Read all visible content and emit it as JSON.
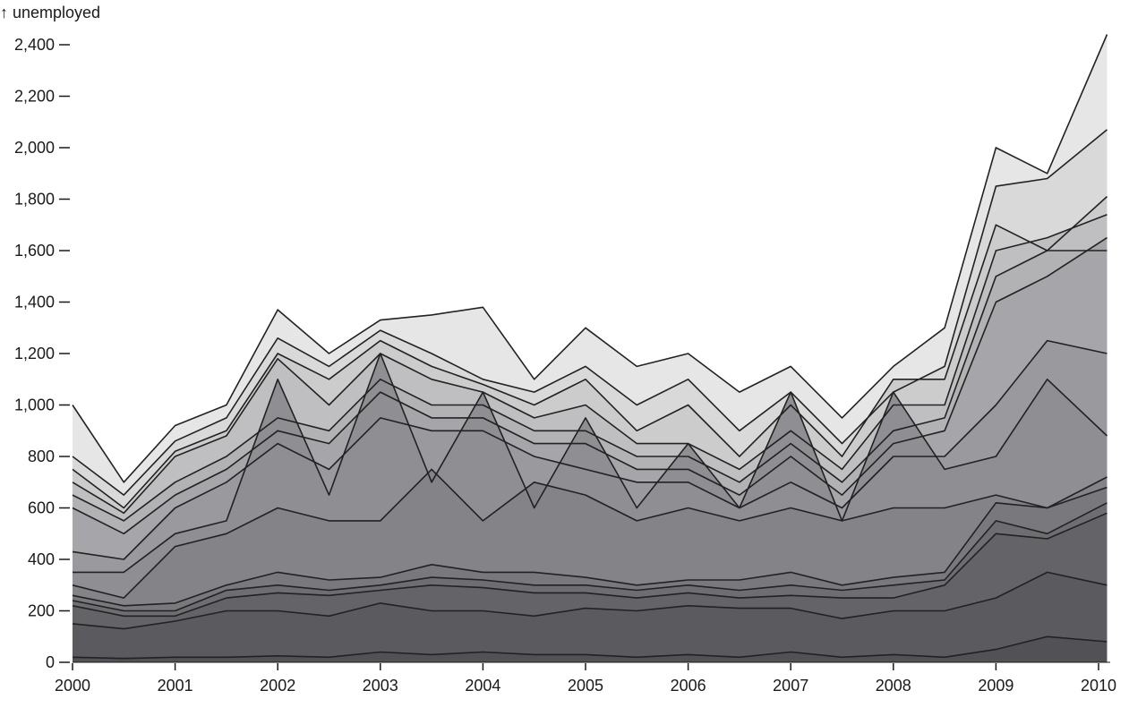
{
  "chart_data": {
    "type": "line",
    "subtype": "overlapping-area",
    "ylabel": "↑ unemployed",
    "ylim": [
      0,
      2450
    ],
    "xlim": [
      "2000-01",
      "2010-02"
    ],
    "y_ticks": [
      0,
      200,
      400,
      600,
      800,
      1000,
      1200,
      1400,
      1600,
      1800,
      2000,
      2200,
      2400
    ],
    "y_tick_labels": [
      "0",
      "200",
      "400",
      "600",
      "800",
      "1,000",
      "1,200",
      "1,400",
      "1,600",
      "1,800",
      "2,000",
      "2,200",
      "2,400"
    ],
    "x_ticks": [
      "2000",
      "2001",
      "2002",
      "2003",
      "2004",
      "2005",
      "2006",
      "2007",
      "2008",
      "2009",
      "2010"
    ],
    "x": [
      "2000-01",
      "2000-07",
      "2001-01",
      "2001-07",
      "2002-01",
      "2002-07",
      "2003-01",
      "2003-07",
      "2004-01",
      "2004-07",
      "2005-01",
      "2005-07",
      "2006-01",
      "2006-07",
      "2007-01",
      "2007-07",
      "2008-01",
      "2008-07",
      "2009-01",
      "2009-07",
      "2010-02"
    ],
    "fill_colors": [
      "#e6e6e6",
      "#d9d9d9",
      "#cccccd",
      "#bfbfc1",
      "#b2b2b5",
      "#a6a6aa",
      "#9a9a9e",
      "#8e8e93",
      "#838388",
      "#78787d",
      "#6d6d72",
      "#636368",
      "#5a5a5f",
      "#525256"
    ],
    "series": [
      {
        "values": [
          1000,
          700,
          920,
          1000,
          1370,
          1200,
          1330,
          1350,
          1380,
          1100,
          1300,
          1150,
          1200,
          1050,
          1150,
          950,
          1150,
          1300,
          2000,
          1900,
          2440
        ]
      },
      {
        "values": [
          800,
          650,
          860,
          950,
          1260,
          1150,
          1290,
          1200,
          1100,
          1050,
          1150,
          1000,
          1100,
          900,
          1050,
          850,
          1050,
          1150,
          1850,
          1880,
          2070
        ]
      },
      {
        "values": [
          750,
          600,
          820,
          900,
          1200,
          1100,
          1250,
          1150,
          1080,
          1000,
          1100,
          900,
          1000,
          800,
          1000,
          800,
          1100,
          1100,
          1700,
          1600,
          1810
        ]
      },
      {
        "values": [
          700,
          580,
          800,
          880,
          1180,
          1000,
          1200,
          1100,
          1050,
          950,
          1000,
          850,
          850,
          750,
          900,
          750,
          1000,
          1000,
          1600,
          1650,
          1740
        ]
      },
      {
        "values": [
          650,
          550,
          700,
          800,
          950,
          900,
          1100,
          1000,
          1000,
          900,
          900,
          800,
          800,
          700,
          850,
          700,
          900,
          950,
          1500,
          1600,
          1600
        ]
      },
      {
        "values": [
          600,
          500,
          650,
          750,
          900,
          850,
          1050,
          950,
          950,
          850,
          850,
          750,
          750,
          650,
          800,
          650,
          850,
          900,
          1400,
          1500,
          1650
        ]
      },
      {
        "values": [
          430,
          400,
          600,
          700,
          850,
          750,
          950,
          900,
          900,
          800,
          750,
          700,
          700,
          600,
          700,
          600,
          800,
          800,
          1000,
          1250,
          1200
        ]
      },
      {
        "values": [
          350,
          350,
          500,
          550,
          1100,
          650,
          1200,
          700,
          1050,
          600,
          950,
          600,
          850,
          600,
          1050,
          550,
          1050,
          750,
          800,
          1100,
          880
        ]
      },
      {
        "values": [
          300,
          250,
          450,
          500,
          600,
          550,
          550,
          750,
          550,
          700,
          650,
          550,
          600,
          550,
          600,
          550,
          600,
          600,
          650,
          600,
          720
        ]
      },
      {
        "values": [
          260,
          220,
          230,
          300,
          350,
          320,
          330,
          380,
          350,
          350,
          330,
          300,
          320,
          320,
          350,
          300,
          330,
          350,
          620,
          600,
          680
        ]
      },
      {
        "values": [
          240,
          200,
          200,
          280,
          300,
          280,
          300,
          330,
          320,
          300,
          300,
          280,
          300,
          280,
          300,
          280,
          300,
          320,
          550,
          500,
          620
        ]
      },
      {
        "values": [
          220,
          180,
          180,
          250,
          270,
          260,
          280,
          300,
          290,
          270,
          270,
          250,
          270,
          250,
          260,
          250,
          250,
          300,
          500,
          480,
          580
        ]
      },
      {
        "values": [
          150,
          130,
          160,
          200,
          200,
          180,
          230,
          200,
          200,
          180,
          210,
          200,
          220,
          210,
          210,
          170,
          200,
          200,
          250,
          350,
          300
        ]
      },
      {
        "values": [
          20,
          15,
          20,
          20,
          25,
          20,
          40,
          30,
          40,
          30,
          30,
          20,
          30,
          20,
          40,
          20,
          30,
          20,
          50,
          100,
          80
        ]
      }
    ]
  }
}
